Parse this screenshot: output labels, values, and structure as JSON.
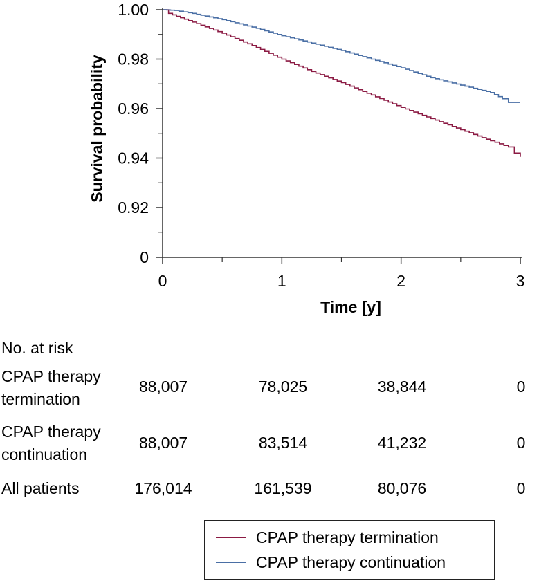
{
  "chart_data": {
    "type": "line",
    "subtype": "kaplan-meier step",
    "title": "",
    "xlabel": "Time [y]",
    "ylabel": "Survival probability",
    "xlim": [
      0,
      3
    ],
    "ylim": [
      0.9,
      1.0
    ],
    "x_ticks": [
      0,
      1,
      2,
      3
    ],
    "x_tick_labels": [
      "0",
      "1",
      "2",
      "3"
    ],
    "y_ticks": [
      1.0,
      0.98,
      0.96,
      0.94,
      0.92
    ],
    "y_tick_labels": [
      "1.00",
      "0.98",
      "0.96",
      "0.94",
      "0.92"
    ],
    "y_axis_break_label": "0",
    "series": [
      {
        "name": "CPAP therapy termination",
        "color": "#8b1a43",
        "x": [
          0,
          0.05,
          0.25,
          0.5,
          0.75,
          1.0,
          1.25,
          1.5,
          1.75,
          2.0,
          2.25,
          2.5,
          2.75,
          2.9,
          2.95,
          3.0
        ],
        "y": [
          1.0,
          0.9985,
          0.995,
          0.9905,
          0.9855,
          0.98,
          0.975,
          0.9705,
          0.9655,
          0.9605,
          0.956,
          0.9515,
          0.947,
          0.9445,
          0.942,
          0.9405
        ]
      },
      {
        "name": "CPAP therapy continuation",
        "color": "#4a6fa5",
        "x": [
          0,
          0.1,
          0.25,
          0.5,
          0.75,
          1.0,
          1.25,
          1.5,
          1.75,
          2.0,
          2.25,
          2.5,
          2.75,
          2.85,
          2.9,
          3.0
        ],
        "y": [
          1.0,
          0.9997,
          0.9985,
          0.996,
          0.993,
          0.9895,
          0.9865,
          0.9835,
          0.98,
          0.9765,
          0.9725,
          0.9695,
          0.9665,
          0.964,
          0.9625,
          0.9625
        ]
      }
    ],
    "legend": [
      "CPAP therapy termination",
      "CPAP therapy continuation"
    ],
    "legend_position": "bottom-right"
  },
  "risk_table": {
    "header": "No. at risk",
    "rows": [
      {
        "label_line1": "CPAP therapy",
        "label_line2": "termination",
        "values": [
          "88,007",
          "78,025",
          "38,844",
          "0"
        ]
      },
      {
        "label_line1": "CPAP therapy",
        "label_line2": "continuation",
        "values": [
          "88,007",
          "83,514",
          "41,232",
          "0"
        ]
      },
      {
        "label_line1": "All patients",
        "label_line2": "",
        "values": [
          "176,014",
          "161,539",
          "80,076",
          "0"
        ]
      }
    ]
  }
}
